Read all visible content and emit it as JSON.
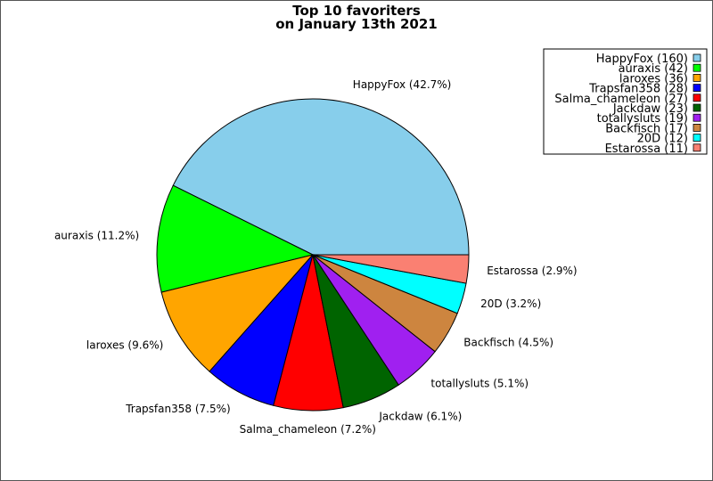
{
  "chart_data": {
    "type": "pie",
    "title": "Top 10 favoriters",
    "subtitle": "on January 13th 2021",
    "legend_position": "top-right",
    "slices": [
      {
        "name": "HappyFox",
        "value": 160,
        "percent_label": "42.7%",
        "legend_label": "HappyFox (160)",
        "slice_label": "HappyFox (42.7%)",
        "color": "#87ceeb"
      },
      {
        "name": "auraxis",
        "value": 42,
        "percent_label": "11.2%",
        "legend_label": "auraxis (42)",
        "slice_label": "auraxis (11.2%)",
        "color": "#00ff00"
      },
      {
        "name": "laroxes",
        "value": 36,
        "percent_label": "9.6%",
        "legend_label": "laroxes (36)",
        "slice_label": "laroxes (9.6%)",
        "color": "#ffa500"
      },
      {
        "name": "Trapsfan358",
        "value": 28,
        "percent_label": "7.5%",
        "legend_label": "Trapsfan358 (28)",
        "slice_label": "Trapsfan358 (7.5%)",
        "color": "#0000ff"
      },
      {
        "name": "Salma_chameleon",
        "value": 27,
        "percent_label": "7.2%",
        "legend_label": "Salma_chameleon (27)",
        "slice_label": "Salma_chameleon (7.2%)",
        "color": "#ff0000"
      },
      {
        "name": "Jackdaw",
        "value": 23,
        "percent_label": "6.1%",
        "legend_label": "Jackdaw (23)",
        "slice_label": "Jackdaw (6.1%)",
        "color": "#006400"
      },
      {
        "name": "totallysluts",
        "value": 19,
        "percent_label": "5.1%",
        "legend_label": "totallysluts (19)",
        "slice_label": "totallysluts (5.1%)",
        "color": "#a020f0"
      },
      {
        "name": "Backfisch",
        "value": 17,
        "percent_label": "4.5%",
        "legend_label": "Backfisch (17)",
        "slice_label": "Backfisch (4.5%)",
        "color": "#cd853f"
      },
      {
        "name": "20D",
        "value": 12,
        "percent_label": "3.2%",
        "legend_label": "20D (12)",
        "slice_label": "20D (3.2%)",
        "color": "#00ffff"
      },
      {
        "name": "Estarossa",
        "value": 11,
        "percent_label": "2.9%",
        "legend_label": "Estarossa (11)",
        "slice_label": "Estarossa (2.9%)",
        "color": "#fa8072"
      }
    ]
  }
}
